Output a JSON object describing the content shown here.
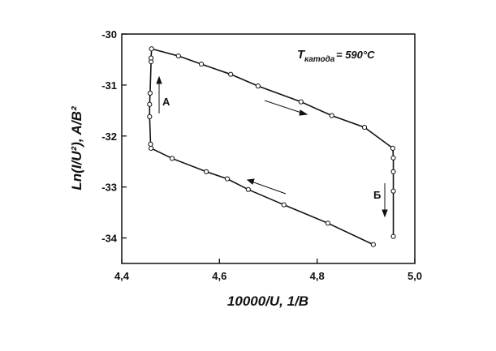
{
  "chart_data": {
    "type": "line",
    "x_label": "10000/U,  1/B",
    "y_label": "Ln(I/U²),  A/B²",
    "annotation": {
      "symbol": "T",
      "subscript": "катода",
      "text": "= 590°C"
    },
    "branch_labels": [
      "А",
      "Б"
    ],
    "xlim": [
      4.4,
      5.0
    ],
    "ylim": [
      -34.5,
      -30
    ],
    "xticks": [
      {
        "value": 4.4,
        "label": "4,4"
      },
      {
        "value": 4.6,
        "label": "4,6"
      },
      {
        "value": 4.8,
        "label": "4,8"
      },
      {
        "value": 5.0,
        "label": "5,0"
      }
    ],
    "yticks": [
      -30,
      -31,
      -32,
      -33,
      -34
    ],
    "series": [
      {
        "color": "#111111",
        "x": [
          4.915,
          4.822,
          4.732,
          4.659,
          4.616,
          4.573,
          4.503,
          4.46,
          4.459,
          4.457,
          4.457,
          4.458,
          4.46,
          4.46,
          4.461,
          4.516,
          4.563,
          4.623,
          4.679,
          4.767,
          4.83,
          4.897,
          4.955,
          4.956,
          4.956,
          4.956,
          4.956
        ],
        "y": [
          -34.13,
          -33.71,
          -33.35,
          -33.05,
          -32.84,
          -32.7,
          -32.44,
          -32.24,
          -32.16,
          -31.62,
          -31.38,
          -31.16,
          -30.54,
          -30.47,
          -30.29,
          -30.43,
          -30.59,
          -30.79,
          -31.02,
          -31.33,
          -31.6,
          -31.83,
          -32.24,
          -32.43,
          -32.7,
          -33.08,
          -33.97
        ]
      }
    ]
  }
}
